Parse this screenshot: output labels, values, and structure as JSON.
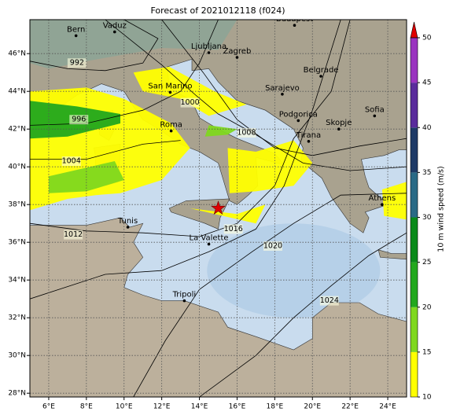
{
  "map": {
    "title": "Forecast of 2021012118 (f024)",
    "xlim": [
      5,
      25
    ],
    "ylim": [
      27.8,
      47.8
    ],
    "xticks": [
      {
        "value": 6,
        "label": "6°E"
      },
      {
        "value": 8,
        "label": "8°E"
      },
      {
        "value": 10,
        "label": "10°E"
      },
      {
        "value": 12,
        "label": "12°E"
      },
      {
        "value": 14,
        "label": "14°E"
      },
      {
        "value": 16,
        "label": "16°E"
      },
      {
        "value": 18,
        "label": "18°E"
      },
      {
        "value": 20,
        "label": "20°E"
      },
      {
        "value": 22,
        "label": "22°E"
      },
      {
        "value": 24,
        "label": "24°E"
      }
    ],
    "yticks": [
      {
        "value": 28,
        "label": "28°N"
      },
      {
        "value": 30,
        "label": "30°N"
      },
      {
        "value": 32,
        "label": "32°N"
      },
      {
        "value": 34,
        "label": "34°N"
      },
      {
        "value": 36,
        "label": "36°N"
      },
      {
        "value": 38,
        "label": "38°N"
      },
      {
        "value": 40,
        "label": "40°N"
      },
      {
        "value": 42,
        "label": "42°N"
      },
      {
        "value": 44,
        "label": "44°N"
      },
      {
        "value": 46,
        "label": "46°N"
      }
    ],
    "grid": true,
    "cities": [
      "Bern",
      "Vaduz",
      "Budapest",
      "Ljubljana",
      "Zagreb",
      "San Marino",
      "Sarajevo",
      "Belgrade",
      "Roma",
      "Podgorica",
      "Sofia",
      "Skopje",
      "Tirana",
      "Tunis",
      "La Valette",
      "Tripoli",
      "Athens"
    ],
    "isobars": [
      992,
      996,
      1000,
      1004,
      1008,
      1012,
      1016,
      1020,
      1024
    ],
    "colorbar": {
      "label": "10 m wind speed (m/s)",
      "ticks": [
        10,
        15,
        20,
        25,
        30,
        35,
        40,
        45,
        50
      ],
      "colors": [
        "#ffff00",
        "#7fd81f",
        "#22a81e",
        "#0a8a1a",
        "#2a6a86",
        "#1e3a66",
        "#5a2c9c",
        "#9a34c0"
      ],
      "extend_color": "#e00000"
    }
  }
}
